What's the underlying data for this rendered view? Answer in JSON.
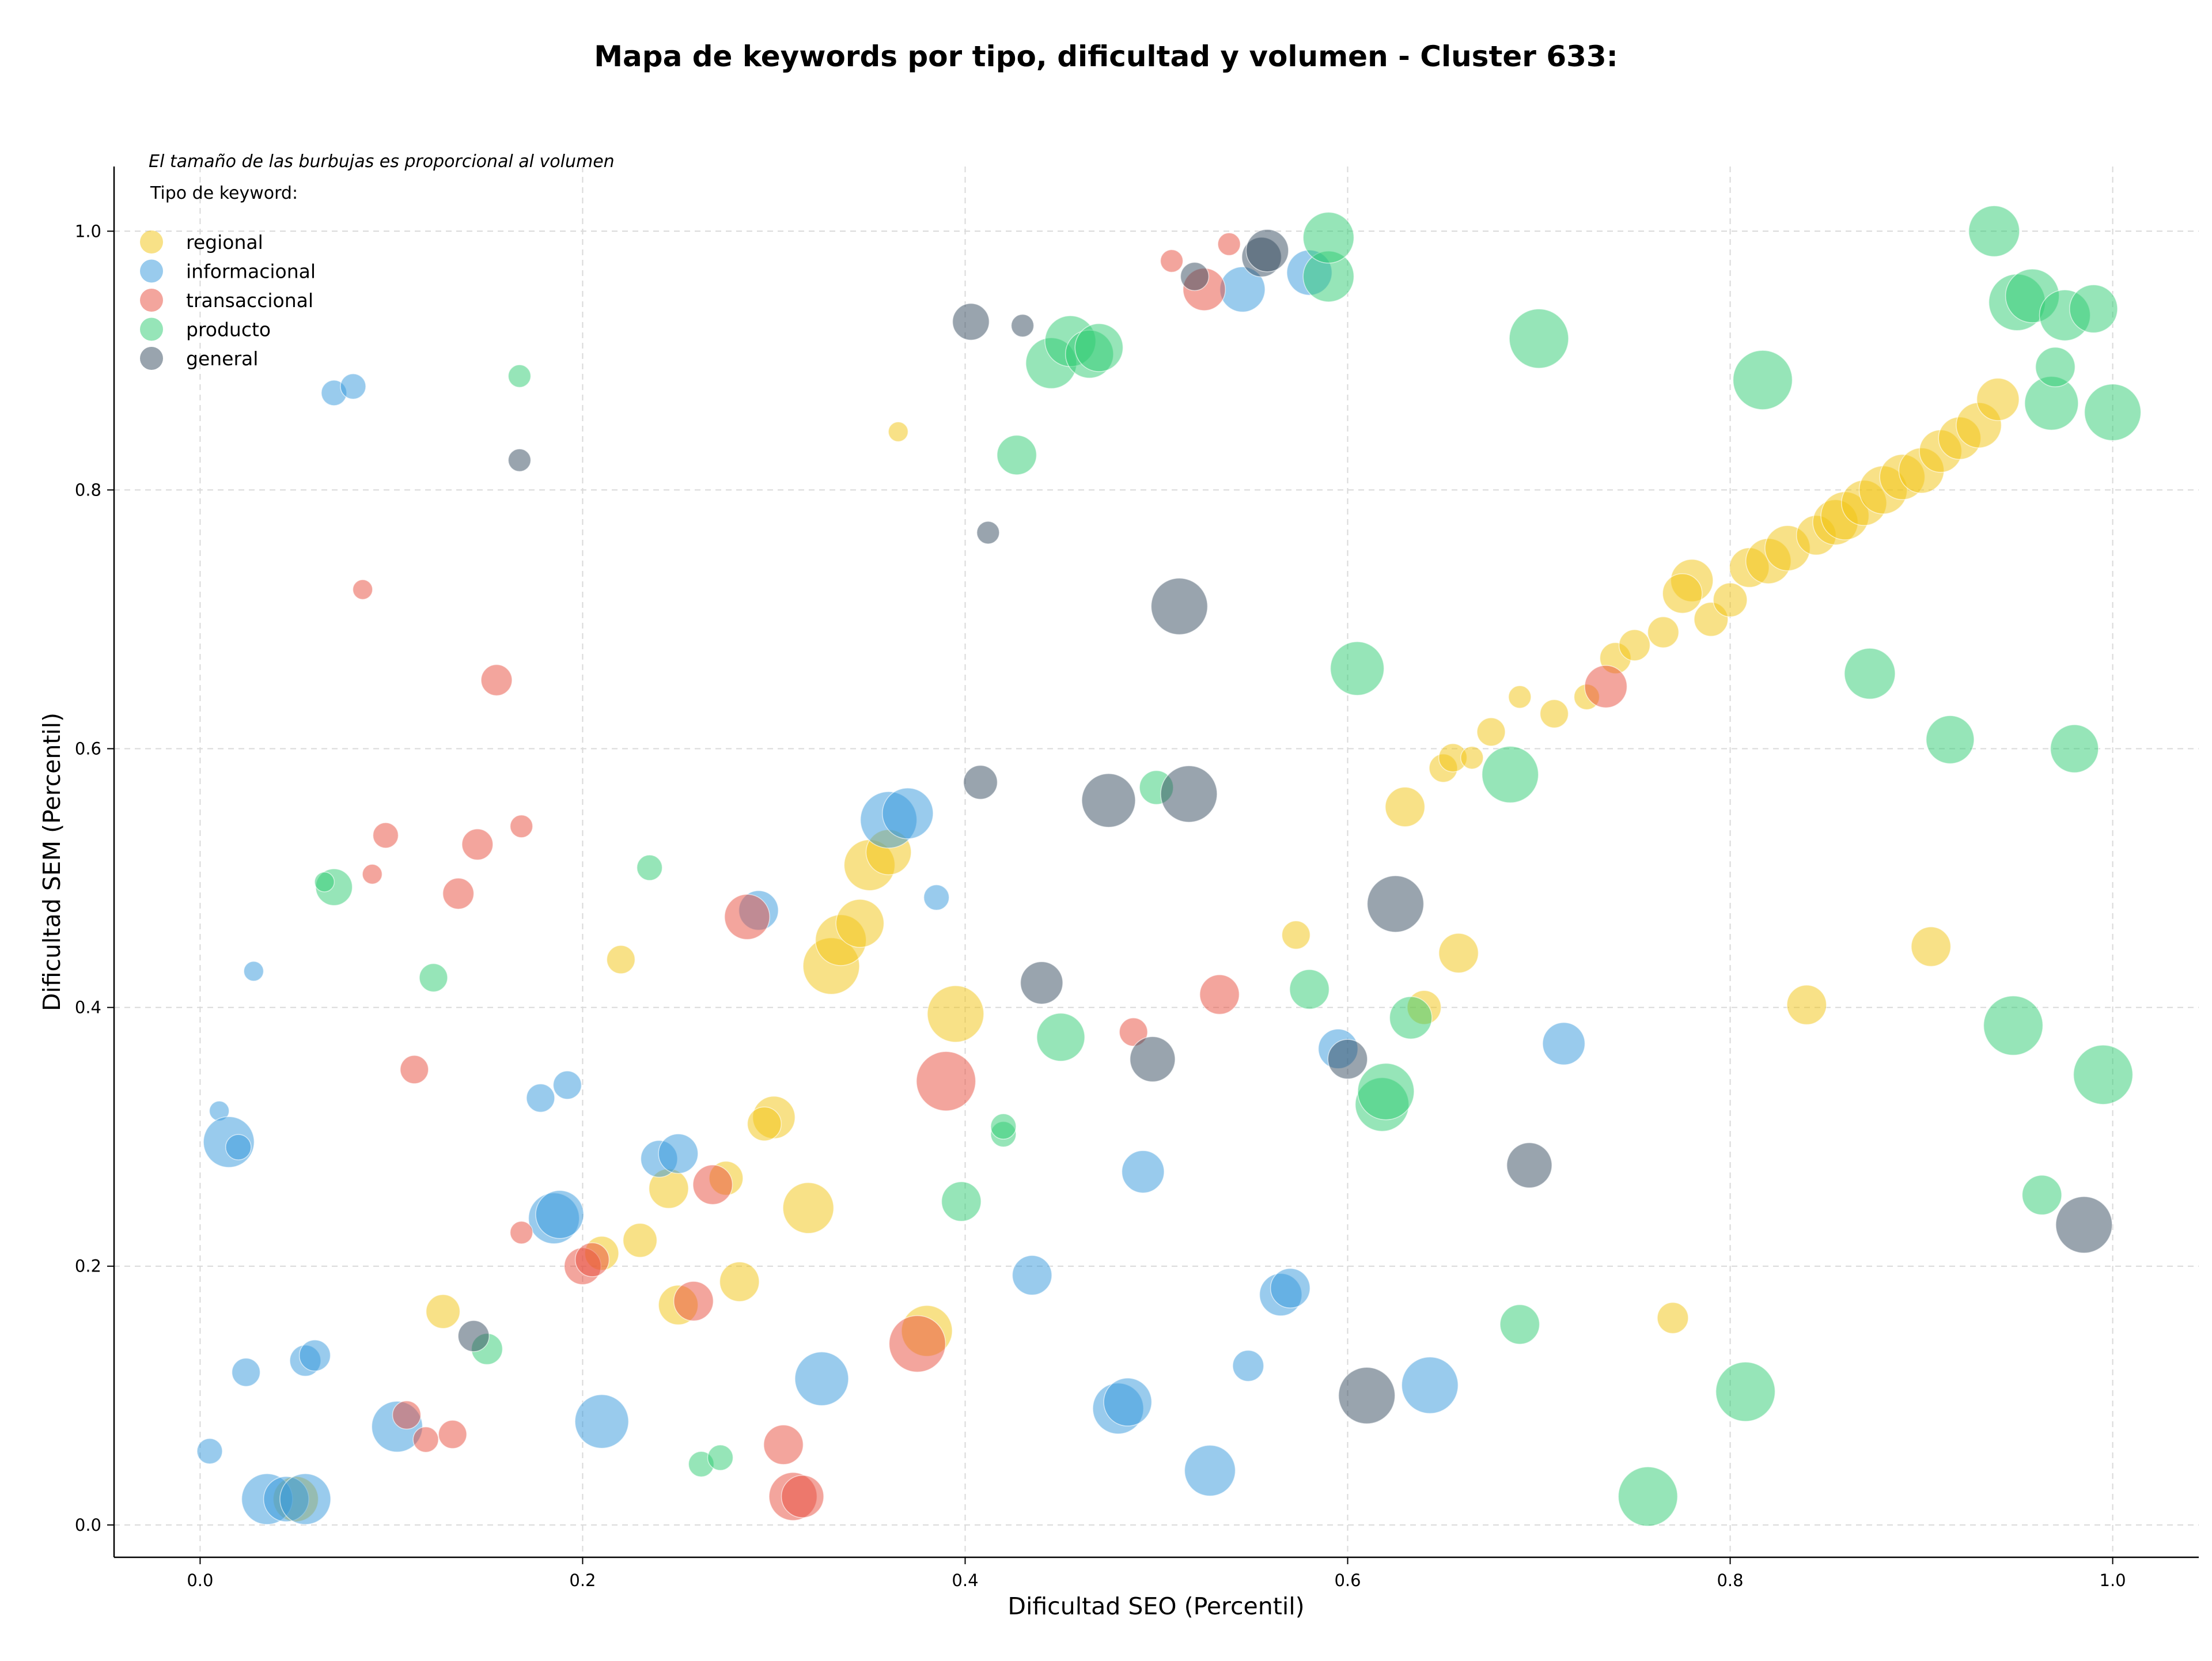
{
  "chart_data": {
    "type": "scatter",
    "title": "Mapa de keywords por tipo, dificultad y volumen - Cluster 633:",
    "xlabel": "Dificultad SEO (Percentil)",
    "ylabel": "Dificultad SEM (Percentil)",
    "xlim": [
      -0.045,
      1.045
    ],
    "ylim": [
      -0.025,
      1.05
    ],
    "x_ticks": [
      "0.0",
      "0.2",
      "0.4",
      "0.6",
      "0.8",
      "1.0"
    ],
    "y_ticks": [
      "0.0",
      "0.2",
      "0.4",
      "0.6",
      "0.8",
      "1.0"
    ],
    "grid": true,
    "note": "El tamaño de las burbujas es proporcional al volumen",
    "legend_title": "Tipo de keyword:",
    "legend_position": "top-left",
    "colors": {
      "regional": "#f1c40f",
      "informacional": "#3498db",
      "transaccional": "#e74c3c",
      "producto": "#2ecc71",
      "general": "#34495e"
    },
    "series": [
      {
        "name": "regional",
        "points": [
          [
            0.365,
            0.845,
            7
          ],
          [
            0.22,
            0.437,
            10
          ],
          [
            0.245,
            0.26,
            14
          ],
          [
            0.23,
            0.22,
            12
          ],
          [
            0.21,
            0.21,
            12
          ],
          [
            0.127,
            0.165,
            12
          ],
          [
            0.05,
            0.02,
            16
          ],
          [
            0.25,
            0.17,
            14
          ],
          [
            0.282,
            0.188,
            14
          ],
          [
            0.275,
            0.268,
            12
          ],
          [
            0.3,
            0.315,
            15
          ],
          [
            0.295,
            0.31,
            12
          ],
          [
            0.318,
            0.245,
            18
          ],
          [
            0.33,
            0.432,
            20
          ],
          [
            0.335,
            0.452,
            18
          ],
          [
            0.345,
            0.465,
            17
          ],
          [
            0.35,
            0.51,
            18
          ],
          [
            0.36,
            0.52,
            16
          ],
          [
            0.38,
            0.15,
            18
          ],
          [
            0.395,
            0.395,
            20
          ],
          [
            0.573,
            0.456,
            10
          ],
          [
            0.63,
            0.555,
            14
          ],
          [
            0.65,
            0.585,
            10
          ],
          [
            0.655,
            0.593,
            10
          ],
          [
            0.64,
            0.4,
            12
          ],
          [
            0.658,
            0.442,
            14
          ],
          [
            0.665,
            0.593,
            8
          ],
          [
            0.675,
            0.613,
            10
          ],
          [
            0.69,
            0.64,
            8
          ],
          [
            0.708,
            0.627,
            10
          ],
          [
            0.725,
            0.64,
            9
          ],
          [
            0.74,
            0.67,
            11
          ],
          [
            0.75,
            0.68,
            11
          ],
          [
            0.765,
            0.69,
            11
          ],
          [
            0.77,
            0.16,
            11
          ],
          [
            0.78,
            0.73,
            15
          ],
          [
            0.775,
            0.72,
            14
          ],
          [
            0.79,
            0.7,
            12
          ],
          [
            0.8,
            0.715,
            12
          ],
          [
            0.81,
            0.74,
            14
          ],
          [
            0.82,
            0.745,
            16
          ],
          [
            0.83,
            0.755,
            16
          ],
          [
            0.84,
            0.402,
            14
          ],
          [
            0.845,
            0.765,
            14
          ],
          [
            0.855,
            0.775,
            16
          ],
          [
            0.86,
            0.78,
            17
          ],
          [
            0.87,
            0.79,
            16
          ],
          [
            0.88,
            0.8,
            17
          ],
          [
            0.89,
            0.81,
            16
          ],
          [
            0.9,
            0.815,
            16
          ],
          [
            0.905,
            0.447,
            14
          ],
          [
            0.91,
            0.83,
            15
          ],
          [
            0.92,
            0.84,
            15
          ],
          [
            0.93,
            0.85,
            16
          ],
          [
            0.94,
            0.87,
            15
          ]
        ]
      },
      {
        "name": "informacional",
        "points": [
          [
            0.07,
            0.875,
            9
          ],
          [
            0.08,
            0.88,
            9
          ],
          [
            0.028,
            0.428,
            7
          ],
          [
            0.01,
            0.32,
            7
          ],
          [
            0.015,
            0.296,
            18
          ],
          [
            0.02,
            0.292,
            9
          ],
          [
            0.024,
            0.118,
            10
          ],
          [
            0.005,
            0.057,
            9
          ],
          [
            0.055,
            0.127,
            11
          ],
          [
            0.06,
            0.131,
            11
          ],
          [
            0.035,
            0.02,
            18
          ],
          [
            0.045,
            0.02,
            16
          ],
          [
            0.055,
            0.02,
            18
          ],
          [
            0.103,
            0.076,
            18
          ],
          [
            0.178,
            0.33,
            10
          ],
          [
            0.192,
            0.34,
            10
          ],
          [
            0.185,
            0.237,
            18
          ],
          [
            0.188,
            0.24,
            17
          ],
          [
            0.21,
            0.08,
            19
          ],
          [
            0.24,
            0.283,
            13
          ],
          [
            0.25,
            0.287,
            14
          ],
          [
            0.292,
            0.475,
            14
          ],
          [
            0.325,
            0.113,
            19
          ],
          [
            0.36,
            0.545,
            20
          ],
          [
            0.37,
            0.55,
            18
          ],
          [
            0.385,
            0.485,
            9
          ],
          [
            0.435,
            0.193,
            14
          ],
          [
            0.48,
            0.09,
            18
          ],
          [
            0.485,
            0.095,
            17
          ],
          [
            0.493,
            0.273,
            15
          ],
          [
            0.528,
            0.042,
            18
          ],
          [
            0.545,
            0.955,
            16
          ],
          [
            0.548,
            0.123,
            11
          ],
          [
            0.565,
            0.178,
            15
          ],
          [
            0.57,
            0.183,
            14
          ],
          [
            0.58,
            0.968,
            16
          ],
          [
            0.595,
            0.368,
            14
          ],
          [
            0.643,
            0.108,
            20
          ],
          [
            0.713,
            0.372,
            15
          ]
        ]
      },
      {
        "name": "transaccional",
        "points": [
          [
            0.085,
            0.723,
            7
          ],
          [
            0.155,
            0.653,
            11
          ],
          [
            0.168,
            0.54,
            8
          ],
          [
            0.145,
            0.526,
            11
          ],
          [
            0.097,
            0.533,
            9
          ],
          [
            0.09,
            0.503,
            7
          ],
          [
            0.135,
            0.488,
            11
          ],
          [
            0.112,
            0.352,
            10
          ],
          [
            0.168,
            0.226,
            8
          ],
          [
            0.2,
            0.2,
            13
          ],
          [
            0.205,
            0.205,
            12
          ],
          [
            0.108,
            0.085,
            10
          ],
          [
            0.118,
            0.066,
            9
          ],
          [
            0.132,
            0.07,
            10
          ],
          [
            0.258,
            0.173,
            14
          ],
          [
            0.268,
            0.263,
            14
          ],
          [
            0.286,
            0.47,
            16
          ],
          [
            0.305,
            0.062,
            14
          ],
          [
            0.31,
            0.022,
            17
          ],
          [
            0.315,
            0.022,
            15
          ],
          [
            0.375,
            0.14,
            20
          ],
          [
            0.39,
            0.343,
            21
          ],
          [
            0.488,
            0.381,
            10
          ],
          [
            0.508,
            0.977,
            8
          ],
          [
            0.525,
            0.955,
            15
          ],
          [
            0.533,
            0.41,
            14
          ],
          [
            0.538,
            0.99,
            8
          ],
          [
            0.735,
            0.648,
            15
          ]
        ]
      },
      {
        "name": "producto",
        "points": [
          [
            0.167,
            0.888,
            8
          ],
          [
            0.07,
            0.493,
            13
          ],
          [
            0.065,
            0.497,
            7
          ],
          [
            0.122,
            0.423,
            10
          ],
          [
            0.235,
            0.508,
            9
          ],
          [
            0.15,
            0.136,
            11
          ],
          [
            0.262,
            0.047,
            9
          ],
          [
            0.272,
            0.052,
            9
          ],
          [
            0.398,
            0.25,
            14
          ],
          [
            0.42,
            0.302,
            9
          ],
          [
            0.42,
            0.308,
            9
          ],
          [
            0.427,
            0.827,
            14
          ],
          [
            0.45,
            0.377,
            17
          ],
          [
            0.445,
            0.898,
            18
          ],
          [
            0.455,
            0.915,
            18
          ],
          [
            0.465,
            0.905,
            17
          ],
          [
            0.47,
            0.91,
            17
          ],
          [
            0.5,
            0.57,
            12
          ],
          [
            0.58,
            0.414,
            14
          ],
          [
            0.59,
            0.965,
            18
          ],
          [
            0.59,
            0.995,
            18
          ],
          [
            0.605,
            0.662,
            19
          ],
          [
            0.618,
            0.325,
            19
          ],
          [
            0.62,
            0.335,
            20
          ],
          [
            0.633,
            0.392,
            15
          ],
          [
            0.685,
            0.58,
            20
          ],
          [
            0.69,
            0.155,
            14
          ],
          [
            0.7,
            0.917,
            21
          ],
          [
            0.757,
            0.022,
            21
          ],
          [
            0.808,
            0.103,
            21
          ],
          [
            0.817,
            0.885,
            21
          ],
          [
            0.873,
            0.658,
            18
          ],
          [
            0.915,
            0.607,
            17
          ],
          [
            0.938,
            1.0,
            18
          ],
          [
            0.95,
            0.945,
            20
          ],
          [
            0.958,
            0.95,
            19
          ],
          [
            0.963,
            0.255,
            14
          ],
          [
            0.968,
            0.867,
            19
          ],
          [
            0.97,
            0.895,
            14
          ],
          [
            0.975,
            0.935,
            18
          ],
          [
            0.98,
            0.6,
            17
          ],
          [
            0.99,
            0.94,
            17
          ],
          [
            0.995,
            0.348,
            21
          ],
          [
            1.0,
            0.86,
            20
          ],
          [
            0.948,
            0.386,
            21
          ]
        ]
      },
      {
        "name": "general",
        "points": [
          [
            0.167,
            0.823,
            8
          ],
          [
            0.143,
            0.146,
            11
          ],
          [
            0.403,
            0.93,
            13
          ],
          [
            0.43,
            0.927,
            8
          ],
          [
            0.412,
            0.767,
            8
          ],
          [
            0.408,
            0.574,
            12
          ],
          [
            0.44,
            0.419,
            15
          ],
          [
            0.475,
            0.56,
            19
          ],
          [
            0.498,
            0.36,
            16
          ],
          [
            0.512,
            0.71,
            20
          ],
          [
            0.517,
            0.565,
            20
          ],
          [
            0.52,
            0.965,
            10
          ],
          [
            0.555,
            0.98,
            14
          ],
          [
            0.558,
            0.985,
            15
          ],
          [
            0.6,
            0.36,
            14
          ],
          [
            0.61,
            0.1,
            20
          ],
          [
            0.625,
            0.48,
            20
          ],
          [
            0.695,
            0.278,
            16
          ],
          [
            0.985,
            0.232,
            20
          ]
        ]
      }
    ]
  }
}
